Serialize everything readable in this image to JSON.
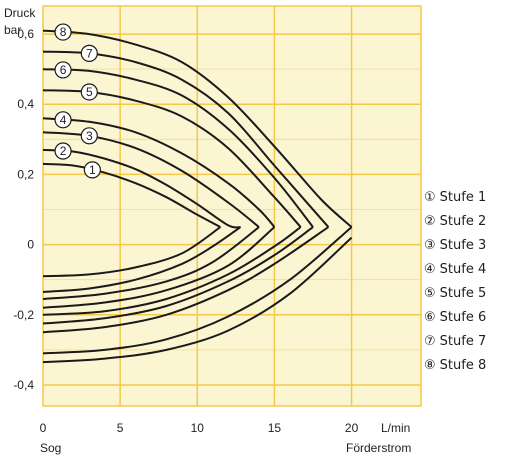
{
  "chart_data": {
    "type": "line",
    "ylabel_line1": "Druck",
    "ylabel_line2": "bar",
    "xunit": "L/min",
    "xlabel": "Förderstrom",
    "xlabel_left": "Sog",
    "xlim": [
      0,
      24.5
    ],
    "ylim": [
      -0.46,
      0.68
    ],
    "x_ticks": [
      0,
      5,
      10,
      15,
      20
    ],
    "y_ticks": [
      -0.4,
      -0.2,
      0,
      0.2,
      0.4,
      0.6
    ],
    "y_tick_labels": [
      "-0,4",
      "-0,2",
      "0",
      "0,2",
      "0,4",
      "0,6"
    ],
    "grid": true,
    "background_color": "#fcf5d2",
    "grid_color": "#f3c94a",
    "line_color": "#1a1a1a",
    "legend_position": "right",
    "series": [
      {
        "name": "Stufe 1",
        "marker": "①",
        "upper": [
          [
            0,
            0.23
          ],
          [
            2,
            0.225
          ],
          [
            4,
            0.205
          ],
          [
            6,
            0.175
          ],
          [
            8,
            0.135
          ],
          [
            10,
            0.085
          ],
          [
            11.5,
            0.05
          ]
        ],
        "lower": [
          [
            0,
            -0.09
          ],
          [
            3,
            -0.085
          ],
          [
            6,
            -0.065
          ],
          [
            9,
            -0.025
          ],
          [
            11.5,
            0.05
          ]
        ]
      },
      {
        "name": "Stufe 2",
        "marker": "②",
        "upper": [
          [
            0,
            0.27
          ],
          [
            2,
            0.265
          ],
          [
            4,
            0.245
          ],
          [
            6,
            0.215
          ],
          [
            8,
            0.17
          ],
          [
            10,
            0.115
          ],
          [
            12,
            0.055
          ],
          [
            12.8,
            0.05
          ]
        ],
        "lower": [
          [
            0,
            -0.135
          ],
          [
            3,
            -0.125
          ],
          [
            6,
            -0.1
          ],
          [
            9,
            -0.055
          ],
          [
            11,
            -0.005
          ],
          [
            12.8,
            0.05
          ]
        ]
      },
      {
        "name": "Stufe 3",
        "marker": "③",
        "upper": [
          [
            0,
            0.32
          ],
          [
            3,
            0.31
          ],
          [
            6,
            0.275
          ],
          [
            9,
            0.21
          ],
          [
            12,
            0.12
          ],
          [
            14,
            0.05
          ]
        ],
        "lower": [
          [
            0,
            -0.155
          ],
          [
            4,
            -0.14
          ],
          [
            8,
            -0.105
          ],
          [
            11,
            -0.05
          ],
          [
            14,
            0.05
          ]
        ]
      },
      {
        "name": "Stufe 4",
        "marker": "④",
        "upper": [
          [
            0,
            0.36
          ],
          [
            3,
            0.35
          ],
          [
            6,
            0.32
          ],
          [
            9,
            0.26
          ],
          [
            12,
            0.175
          ],
          [
            14,
            0.1
          ],
          [
            15,
            0.05
          ]
        ],
        "lower": [
          [
            0,
            -0.18
          ],
          [
            4,
            -0.165
          ],
          [
            8,
            -0.13
          ],
          [
            12,
            -0.06
          ],
          [
            15,
            0.05
          ]
        ]
      },
      {
        "name": "Stufe 5",
        "marker": "⑤",
        "upper": [
          [
            0,
            0.44
          ],
          [
            3,
            0.435
          ],
          [
            6,
            0.41
          ],
          [
            9,
            0.365
          ],
          [
            12,
            0.275
          ],
          [
            15,
            0.135
          ],
          [
            16.7,
            0.05
          ]
        ],
        "lower": [
          [
            0,
            -0.2
          ],
          [
            4,
            -0.19
          ],
          [
            8,
            -0.155
          ],
          [
            12,
            -0.085
          ],
          [
            15,
            -0.005
          ],
          [
            16.7,
            0.05
          ]
        ]
      },
      {
        "name": "Stufe 6",
        "marker": "⑥",
        "upper": [
          [
            0,
            0.5
          ],
          [
            3,
            0.495
          ],
          [
            6,
            0.47
          ],
          [
            9,
            0.425
          ],
          [
            12,
            0.33
          ],
          [
            15,
            0.19
          ],
          [
            17.5,
            0.05
          ]
        ],
        "lower": [
          [
            0,
            -0.225
          ],
          [
            4,
            -0.21
          ],
          [
            8,
            -0.175
          ],
          [
            12,
            -0.105
          ],
          [
            15,
            -0.03
          ],
          [
            17.5,
            0.05
          ]
        ]
      },
      {
        "name": "Stufe 7",
        "marker": "⑦",
        "upper": [
          [
            0,
            0.55
          ],
          [
            3,
            0.545
          ],
          [
            6,
            0.52
          ],
          [
            9,
            0.47
          ],
          [
            12,
            0.375
          ],
          [
            15,
            0.225
          ],
          [
            18,
            0.075
          ],
          [
            18.5,
            0.05
          ]
        ],
        "lower": [
          [
            0,
            -0.25
          ],
          [
            4,
            -0.235
          ],
          [
            8,
            -0.2
          ],
          [
            12,
            -0.13
          ],
          [
            15,
            -0.055
          ],
          [
            18.5,
            0.05
          ]
        ]
      },
      {
        "name": "Stufe 8",
        "marker": "⑧",
        "upper": [
          [
            0,
            0.61
          ],
          [
            3,
            0.6
          ],
          [
            6,
            0.57
          ],
          [
            9,
            0.52
          ],
          [
            12,
            0.42
          ],
          [
            15,
            0.28
          ],
          [
            18,
            0.13
          ],
          [
            20,
            0.05
          ]
        ],
        "lower": [
          [
            0,
            -0.31
          ],
          [
            4,
            -0.3
          ],
          [
            8,
            -0.27
          ],
          [
            12,
            -0.205
          ],
          [
            16,
            -0.1
          ],
          [
            20,
            0.05
          ]
        ]
      }
    ],
    "bottom_curve": {
      "note_free": true,
      "points": [
        [
          0,
          -0.335
        ],
        [
          4,
          -0.325
        ],
        [
          8,
          -0.3
        ],
        [
          12,
          -0.245
        ],
        [
          16,
          -0.14
        ],
        [
          20,
          0.02
        ]
      ]
    }
  }
}
